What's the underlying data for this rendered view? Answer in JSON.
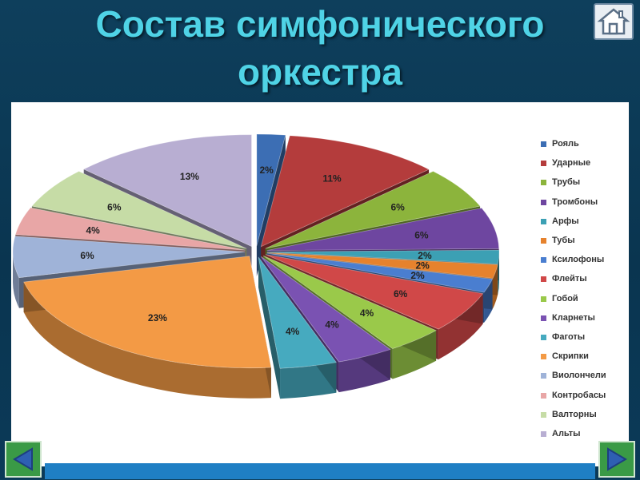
{
  "slide": {
    "title_line1": "Состав симфонического",
    "title_line2": "оркестра",
    "home_icon": "house-icon",
    "prev_icon": "triangle-left-icon",
    "next_icon": "triangle-right-icon"
  },
  "chart_data": {
    "type": "pie",
    "title": "",
    "legend_position": "right",
    "categories": [
      "Рояль",
      "Ударные",
      "Трубы",
      "Тромбоны",
      "Арфы",
      "Тубы",
      "Ксилофоны",
      "Флейты",
      "Гобой",
      "Кларнеты",
      "Фаготы",
      "Скрипки",
      "Виолончели",
      "Контробасы",
      "Валторны",
      "Альты"
    ],
    "values": [
      2,
      11,
      6,
      6,
      2,
      2,
      2,
      6,
      4,
      4,
      4,
      23,
      6,
      4,
      6,
      13
    ],
    "labels": [
      "2%",
      "11%",
      "6%",
      "6%",
      "2%",
      "2%",
      "2%",
      "6%",
      "4%",
      "4%",
      "4%",
      "23%",
      "6%",
      "4%",
      "6%",
      "13%"
    ],
    "colors": [
      "#3c6eb4",
      "#b43c3c",
      "#8cb43c",
      "#6e46a0",
      "#3ca0b4",
      "#e6822d",
      "#4a7ed0",
      "#d04848",
      "#9ac94a",
      "#7a52b2",
      "#46aabf",
      "#f39a45",
      "#9fb3d8",
      "#e8a6a6",
      "#c6dca6",
      "#b8aed2"
    ]
  }
}
